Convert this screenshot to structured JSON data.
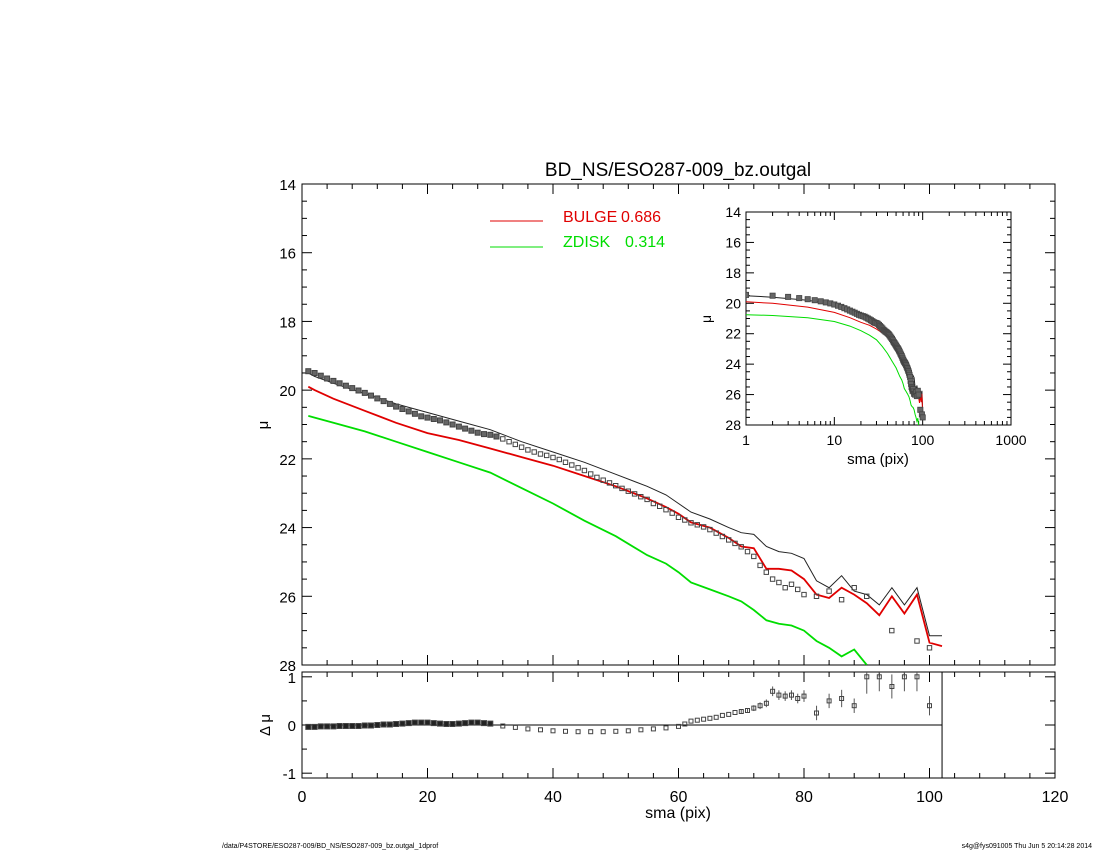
{
  "chart_data": [
    {
      "type": "scatter",
      "panel": "main",
      "title": "BD_NS/ESO287-009_bz.outgal",
      "xlabel": "",
      "ylabel": "μ",
      "xlim": [
        0,
        120
      ],
      "ylim": [
        28,
        14
      ],
      "y_inverted": true,
      "yticks": [
        "14",
        "16",
        "18",
        "20",
        "22",
        "24",
        "26",
        "28"
      ],
      "legend": [
        {
          "name": "BULGE",
          "value": "0.686",
          "color": "#e00000"
        },
        {
          "name": "ZDISK",
          "value": "0.314",
          "color": "#00dd00"
        }
      ],
      "observed": {
        "x": [
          1,
          2,
          3,
          4,
          5,
          6,
          7,
          8,
          9,
          10,
          11,
          12,
          13,
          14,
          15,
          16,
          17,
          18,
          19,
          20,
          21,
          22,
          23,
          24,
          25,
          26,
          27,
          28,
          29,
          30,
          31,
          32,
          33,
          34,
          35,
          36,
          37,
          38,
          39,
          40,
          41,
          42,
          43,
          44,
          45,
          46,
          47,
          48,
          49,
          50,
          51,
          52,
          53,
          54,
          55,
          56,
          57,
          58,
          59,
          60,
          61,
          62,
          63,
          64,
          65,
          66,
          67,
          68,
          69,
          70,
          71,
          72,
          73,
          74,
          75,
          76,
          77,
          78,
          79,
          80,
          82,
          84,
          86,
          88,
          90,
          94,
          98,
          100
        ],
        "y": [
          19.45,
          19.5,
          19.58,
          19.66,
          19.73,
          19.8,
          19.87,
          19.94,
          20.01,
          20.08,
          20.16,
          20.24,
          20.32,
          20.4,
          20.48,
          20.55,
          20.62,
          20.69,
          20.76,
          20.8,
          20.84,
          20.88,
          20.94,
          21.0,
          21.06,
          21.12,
          21.18,
          21.24,
          21.28,
          21.3,
          21.35,
          21.42,
          21.5,
          21.58,
          21.66,
          21.74,
          21.8,
          21.86,
          21.9,
          21.96,
          22.02,
          22.1,
          22.18,
          22.26,
          22.34,
          22.44,
          22.54,
          22.62,
          22.7,
          22.78,
          22.86,
          22.94,
          23.02,
          23.1,
          23.18,
          23.3,
          23.38,
          23.48,
          23.58,
          23.7,
          23.78,
          23.86,
          23.92,
          23.98,
          24.06,
          24.16,
          24.26,
          24.36,
          24.46,
          24.56,
          24.7,
          24.84,
          25.1,
          25.3,
          25.5,
          25.6,
          25.75,
          25.65,
          25.8,
          25.95,
          26.0,
          25.85,
          26.1,
          25.75,
          26.0,
          27.0,
          27.3,
          27.5
        ]
      },
      "total_model": {
        "x": [
          1,
          2,
          5,
          10,
          15,
          20,
          25,
          30,
          35,
          40,
          45,
          50,
          55,
          58,
          60,
          62,
          65,
          68,
          70,
          72,
          74,
          76,
          78,
          80,
          82,
          84,
          86,
          88,
          90,
          92,
          94,
          96,
          98,
          100,
          102
        ],
        "y": [
          19.5,
          19.6,
          19.8,
          20.1,
          20.4,
          20.65,
          20.9,
          21.15,
          21.5,
          21.8,
          22.1,
          22.45,
          22.8,
          23.05,
          23.3,
          23.55,
          23.75,
          24.0,
          24.15,
          24.2,
          24.55,
          24.7,
          24.75,
          24.9,
          25.55,
          25.75,
          25.4,
          25.85,
          25.95,
          26.25,
          25.75,
          26.25,
          25.75,
          27.15,
          27.15
        ]
      },
      "series": [
        {
          "name": "BULGE",
          "x": [
            1,
            2,
            5,
            10,
            15,
            20,
            25,
            30,
            35,
            40,
            45,
            50,
            55,
            58,
            60,
            62,
            65,
            68,
            70,
            72,
            74,
            76,
            78,
            80,
            82,
            84,
            86,
            88,
            90,
            92,
            94,
            96,
            98,
            100,
            102
          ],
          "y": [
            19.9,
            20.0,
            20.25,
            20.6,
            20.95,
            21.25,
            21.45,
            21.7,
            21.95,
            22.2,
            22.5,
            22.8,
            23.15,
            23.4,
            23.6,
            23.85,
            24.0,
            24.3,
            24.55,
            24.6,
            25.2,
            25.2,
            25.25,
            25.5,
            25.95,
            26.05,
            25.75,
            25.95,
            26.2,
            26.55,
            26.0,
            26.5,
            25.95,
            27.35,
            27.45
          ]
        },
        {
          "name": "ZDISK",
          "x": [
            1,
            2,
            5,
            10,
            15,
            20,
            25,
            30,
            35,
            40,
            45,
            50,
            55,
            58,
            60,
            62,
            65,
            68,
            70,
            72,
            74,
            76,
            78,
            80,
            82,
            84,
            86,
            88,
            90
          ],
          "y": [
            20.75,
            20.8,
            20.95,
            21.2,
            21.5,
            21.8,
            22.1,
            22.4,
            22.85,
            23.3,
            23.8,
            24.25,
            24.8,
            25.05,
            25.3,
            25.6,
            25.8,
            26.0,
            26.15,
            26.4,
            26.7,
            26.8,
            26.85,
            27.0,
            27.3,
            27.5,
            27.75,
            27.55,
            28.0
          ]
        }
      ]
    },
    {
      "type": "line",
      "panel": "inset",
      "xlabel": "sma (pix)",
      "ylabel": "μ",
      "xscale": "log",
      "xlim": [
        1,
        1000
      ],
      "ylim": [
        28,
        14
      ],
      "xticks": [
        "1",
        "10",
        "100",
        "1000"
      ],
      "yticks": [
        "14",
        "16",
        "18",
        "20",
        "22",
        "24",
        "26",
        "28"
      ]
    },
    {
      "type": "scatter",
      "panel": "residual",
      "xlabel": "sma (pix)",
      "ylabel": "Δ μ",
      "xlim": [
        0,
        120
      ],
      "ylim": [
        -1.1,
        1.1
      ],
      "xticks": [
        "0",
        "20",
        "40",
        "60",
        "80",
        "100",
        "120"
      ],
      "yticks": [
        "1",
        "0",
        "-1"
      ],
      "x": [
        1,
        2,
        3,
        4,
        5,
        6,
        7,
        8,
        9,
        10,
        11,
        12,
        13,
        14,
        15,
        16,
        17,
        18,
        19,
        20,
        21,
        22,
        23,
        24,
        25,
        26,
        27,
        28,
        29,
        30,
        32,
        34,
        36,
        38,
        40,
        42,
        44,
        46,
        48,
        50,
        52,
        54,
        56,
        58,
        60,
        61,
        62,
        63,
        64,
        65,
        66,
        67,
        68,
        69,
        70,
        71,
        72,
        73,
        74,
        75,
        76,
        77,
        78,
        79,
        80,
        82,
        84,
        86,
        88,
        90,
        92,
        94,
        96,
        98,
        100
      ],
      "y": [
        -0.04,
        -0.04,
        -0.03,
        -0.03,
        -0.03,
        -0.02,
        -0.02,
        -0.02,
        -0.02,
        -0.01,
        -0.01,
        0.0,
        0.01,
        0.01,
        0.02,
        0.03,
        0.04,
        0.05,
        0.05,
        0.05,
        0.04,
        0.03,
        0.02,
        0.02,
        0.03,
        0.04,
        0.05,
        0.05,
        0.04,
        0.03,
        -0.02,
        -0.05,
        -0.08,
        -0.1,
        -0.12,
        -0.13,
        -0.14,
        -0.14,
        -0.14,
        -0.13,
        -0.12,
        -0.1,
        -0.08,
        -0.06,
        -0.03,
        0.02,
        0.08,
        0.1,
        0.12,
        0.14,
        0.16,
        0.2,
        0.22,
        0.26,
        0.28,
        0.3,
        0.35,
        0.4,
        0.45,
        0.7,
        0.62,
        0.6,
        0.62,
        0.55,
        0.6,
        0.25,
        0.5,
        0.55,
        0.4,
        1.0,
        1.0,
        0.8,
        1.0,
        1.0,
        0.4
      ],
      "yerr": [
        0.02,
        0.02,
        0.02,
        0.02,
        0.02,
        0.02,
        0.02,
        0.02,
        0.02,
        0.02,
        0.02,
        0.02,
        0.02,
        0.02,
        0.02,
        0.02,
        0.02,
        0.02,
        0.02,
        0.02,
        0.02,
        0.02,
        0.02,
        0.02,
        0.02,
        0.02,
        0.02,
        0.02,
        0.02,
        0.02,
        0.02,
        0.02,
        0.02,
        0.02,
        0.02,
        0.02,
        0.02,
        0.02,
        0.02,
        0.02,
        0.02,
        0.02,
        0.02,
        0.02,
        0.02,
        0.03,
        0.03,
        0.03,
        0.03,
        0.03,
        0.03,
        0.04,
        0.04,
        0.04,
        0.05,
        0.05,
        0.06,
        0.07,
        0.08,
        0.1,
        0.1,
        0.1,
        0.1,
        0.1,
        0.12,
        0.15,
        0.15,
        0.18,
        0.15,
        0.35,
        0.3,
        0.25,
        0.3,
        0.3,
        0.2
      ]
    }
  ],
  "footer": {
    "left": "/data/P4STORE/ESO287-009/BD_NS/ESO287-009_bz.outgal_1dprof",
    "right": "s4g@fys091005  Thu Jun  5 20:14:28 2014"
  }
}
